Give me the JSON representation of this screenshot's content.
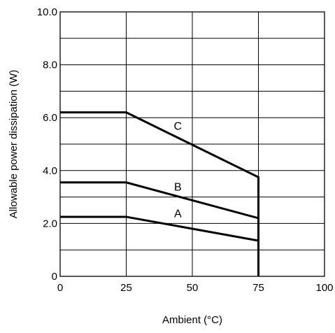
{
  "chart_data": {
    "type": "line",
    "title": "",
    "xlabel": "Ambient  (°C)",
    "ylabel": "Allowable power dissipation (W)",
    "xlim": [
      0,
      100
    ],
    "ylim": [
      0,
      10
    ],
    "x_ticks": [
      0,
      25,
      50,
      75,
      100
    ],
    "x_tick_labels": [
      "0",
      "25",
      "50",
      "75",
      "100"
    ],
    "y_ticks": [
      0,
      2,
      4,
      6,
      8,
      10
    ],
    "y_tick_labels": [
      "0",
      "2.0",
      "4.0",
      "6.0",
      "8.0",
      "10.0"
    ],
    "grid": true,
    "grid_y_step": 1,
    "grid_x_step": 25,
    "series": [
      {
        "name": "A",
        "x": [
          0,
          25,
          75,
          75
        ],
        "y": [
          2.25,
          2.25,
          1.35,
          0
        ],
        "label_at": [
          44,
          2.4
        ]
      },
      {
        "name": "B",
        "x": [
          0,
          25,
          75,
          75
        ],
        "y": [
          3.55,
          3.55,
          2.2,
          0
        ],
        "label_at": [
          44,
          3.4
        ]
      },
      {
        "name": "C",
        "x": [
          0,
          25,
          75,
          75
        ],
        "y": [
          6.2,
          6.2,
          3.75,
          0
        ],
        "label_at": [
          44,
          5.7
        ]
      }
    ],
    "line_color": "#000000"
  }
}
